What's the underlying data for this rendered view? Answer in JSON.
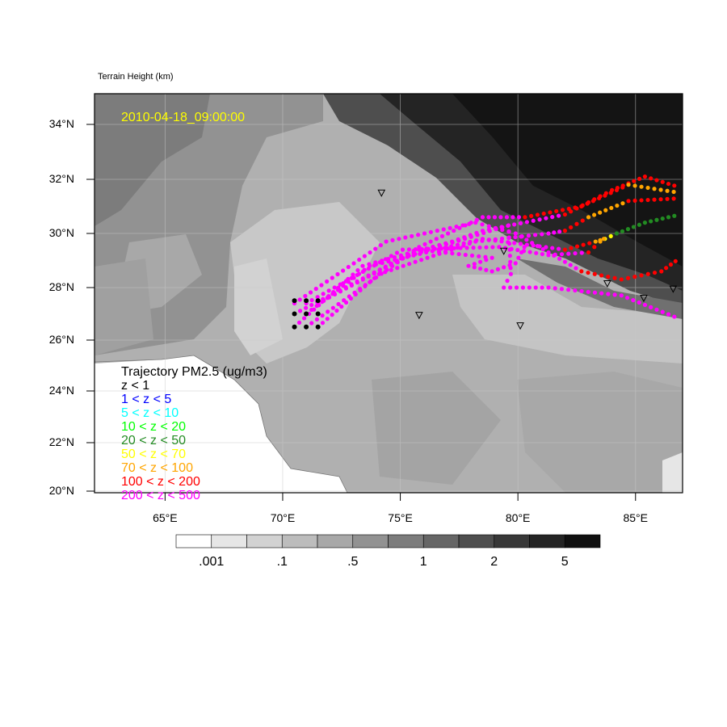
{
  "title_left": "Terrain Height   (km)",
  "timestamp": "2010-04-18_09:00:00",
  "timestamp_color": "#ffff00",
  "map": {
    "lon_range": [
      62,
      87
    ],
    "lat_range": [
      20,
      35
    ],
    "lat_ticks": [
      {
        "lat": 34,
        "label": "34°N"
      },
      {
        "lat": 32,
        "label": "32°N"
      },
      {
        "lat": 30,
        "label": "30°N"
      },
      {
        "lat": 28,
        "label": "28°N"
      },
      {
        "lat": 26,
        "label": "26°N"
      },
      {
        "lat": 24,
        "label": "24°N"
      },
      {
        "lat": 22,
        "label": "22°N"
      },
      {
        "lat": 20,
        "label": "20°N"
      }
    ],
    "lon_ticks": [
      {
        "lon": 65,
        "label": "65°E"
      },
      {
        "lon": 70,
        "label": "70°E"
      },
      {
        "lon": 75,
        "label": "75°E"
      },
      {
        "lon": 80,
        "label": "80°E"
      },
      {
        "lon": 85,
        "label": "85°E"
      }
    ]
  },
  "legend": {
    "title": "Trajectory PM2.5 (ug/m3)",
    "items": [
      {
        "label": "z < 1",
        "color": "#000000"
      },
      {
        "label": "1 < z < 5",
        "color": "#0000ff"
      },
      {
        "label": "5 < z < 10",
        "color": "#00ffff"
      },
      {
        "label": "10 < z < 20",
        "color": "#00ff00"
      },
      {
        "label": "20 < z < 50",
        "color": "#228b22"
      },
      {
        "label": "50 < z < 70",
        "color": "#ffff00"
      },
      {
        "label": "70 < z < 100",
        "color": "#ffa500"
      },
      {
        "label": "100 < z < 200",
        "color": "#ff0000"
      },
      {
        "label": "200 < z < 500",
        "color": "#ff00ff"
      }
    ]
  },
  "colorbar": {
    "colors": [
      "#ffffff",
      "#e6e6e6",
      "#d2d2d2",
      "#bcbcbc",
      "#a8a8a8",
      "#929292",
      "#7c7c7c",
      "#666666",
      "#4e4e4e",
      "#383838",
      "#242424",
      "#101010"
    ],
    "labels": [
      ".001",
      ".1",
      ".5",
      "1",
      "2",
      "5"
    ]
  },
  "sources": [
    [
      70.5,
      26.5
    ],
    [
      71,
      26.5
    ],
    [
      71.5,
      26.5
    ],
    [
      70.5,
      27
    ],
    [
      71,
      27
    ],
    [
      71.5,
      27
    ],
    [
      70.5,
      27.5
    ],
    [
      71,
      27.5
    ],
    [
      71.5,
      27.5
    ]
  ],
  "stations": [
    [
      74.2,
      31.5
    ],
    [
      79.4,
      29.35
    ],
    [
      75.8,
      26.95
    ],
    [
      80.1,
      26.55
    ],
    [
      83.8,
      28.15
    ],
    [
      85.35,
      27.6
    ],
    [
      86.6,
      27.95
    ]
  ],
  "trajectories": [
    {
      "points": [
        [
          70.5,
          26.5
        ],
        [
          73.4,
          28.8
        ],
        [
          77.2,
          29.7
        ],
        [
          78.5,
          30.1
        ],
        [
          82.0,
          30.7
        ],
        [
          84.0,
          31.6
        ],
        [
          85.4,
          32.1
        ],
        [
          86.9,
          31.7
        ]
      ],
      "colors": [
        "#ff00ff",
        "#ff00ff",
        "#ff00ff",
        "#ff00ff",
        "#ff0000",
        "#ff0000",
        "#ff0000"
      ]
    },
    {
      "points": [
        [
          71.5,
          26.5
        ],
        [
          74.1,
          28.5
        ],
        [
          78.2,
          29.7
        ],
        [
          81.3,
          30.0
        ],
        [
          82.0,
          30.1
        ],
        [
          83.0,
          30.6
        ],
        [
          84.7,
          31.2
        ],
        [
          86.9,
          31.3
        ]
      ],
      "colors": [
        "#ff00ff",
        "#ff00ff",
        "#ff00ff",
        "#ff00ff",
        "#ff0000",
        "#ffa500",
        "#ff0000"
      ]
    },
    {
      "points": [
        [
          71.0,
          27.0
        ],
        [
          73.7,
          28.8
        ],
        [
          78.5,
          29.8
        ],
        [
          82.0,
          29.4
        ],
        [
          83.3,
          29.7
        ],
        [
          83.7,
          29.8
        ],
        [
          84.2,
          30.0
        ],
        [
          85.4,
          30.4
        ],
        [
          86.9,
          30.7
        ]
      ],
      "colors": [
        "#ff00ff",
        "#ff00ff",
        "#ff00ff",
        "#ff0000",
        "#ffa500",
        "#ffff00",
        "#228b22",
        "#228b22"
      ]
    },
    {
      "points": [
        [
          71.0,
          27.4
        ],
        [
          75.1,
          29.4
        ],
        [
          79.2,
          29.5
        ],
        [
          81.3,
          29.2
        ],
        [
          83.0,
          29.3
        ],
        [
          83.5,
          29.7
        ],
        [
          83.8,
          29.9
        ]
      ],
      "colors": [
        "#ff00ff",
        "#ff00ff",
        "#ff00ff",
        "#ff00ff",
        "#ff0000",
        "#ffa500"
      ]
    },
    {
      "points": [
        [
          70.5,
          27.4
        ],
        [
          74.4,
          29.7
        ],
        [
          78.2,
          30.4
        ],
        [
          79.9,
          30.0
        ],
        [
          82.7,
          28.6
        ],
        [
          84.4,
          28.3
        ],
        [
          86.1,
          28.6
        ],
        [
          86.9,
          29.1
        ]
      ],
      "colors": [
        "#ff00ff",
        "#ff00ff",
        "#ff00ff",
        "#ff00ff",
        "#ff0000",
        "#ff0000",
        "#ff0000"
      ]
    },
    {
      "points": [
        [
          71.5,
          27.4
        ],
        [
          75.8,
          29.4
        ],
        [
          78.9,
          29.1
        ],
        [
          77.9,
          28.8
        ],
        [
          78.9,
          28.6
        ],
        [
          79.9,
          28.9
        ],
        [
          80.4,
          29.7
        ]
      ],
      "colors": [
        "#ff00ff",
        "#ff00ff",
        "#ff00ff",
        "#ff00ff",
        "#ff00ff",
        "#ff00ff"
      ]
    },
    {
      "points": [
        [
          70.5,
          27.0
        ],
        [
          75.1,
          29.1
        ],
        [
          79.6,
          30.3
        ],
        [
          79.7,
          28.5
        ],
        [
          79.4,
          28.0
        ],
        [
          81.3,
          28.0
        ],
        [
          84.4,
          27.7
        ],
        [
          86.9,
          26.8
        ]
      ],
      "colors": [
        "#ff00ff",
        "#ff00ff",
        "#ff00ff",
        "#ff00ff",
        "#ff00ff",
        "#ff00ff",
        "#ff00ff"
      ]
    },
    {
      "points": [
        [
          71.0,
          26.5
        ],
        [
          75.8,
          29.5
        ],
        [
          78.5,
          30.6
        ],
        [
          80.3,
          30.6
        ],
        [
          82.7,
          31.0
        ],
        [
          84.7,
          31.8
        ],
        [
          86.9,
          31.5
        ]
      ],
      "colors": [
        "#ff00ff",
        "#ff00ff",
        "#ff00ff",
        "#ff0000",
        "#ff0000",
        "#ffa500"
      ]
    }
  ]
}
